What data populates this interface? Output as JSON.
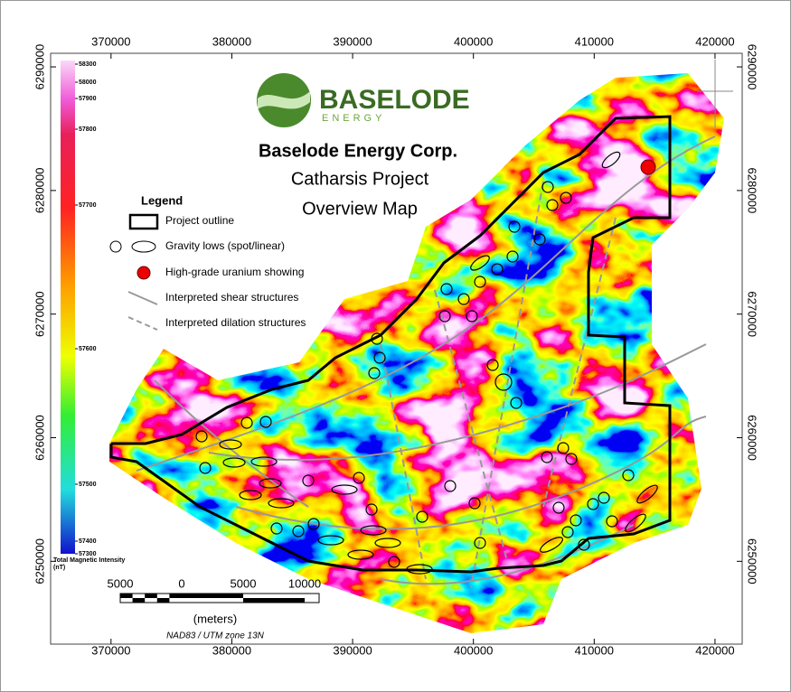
{
  "header": {
    "logo_name": "BASELODE",
    "logo_sub": "ENERGY",
    "title": "Baselode Energy Corp.",
    "subtitle_1": "Catharsis Project",
    "subtitle_2": "Overview Map"
  },
  "legend": {
    "title": "Legend",
    "items": [
      "Project outline",
      "Gravity lows (spot/linear)",
      "High-grade uranium showing",
      "Interpreted shear structures",
      "Interpreted dilation structures"
    ]
  },
  "color_bar": {
    "label": "Total Magnetic Intensity (nT)",
    "ticks": [
      58300,
      58000,
      57900,
      57800,
      57700,
      57600,
      57500,
      57400,
      57300
    ]
  },
  "scale_bar": {
    "labels": [
      5000,
      0,
      5000,
      10000
    ],
    "unit": "(meters)"
  },
  "projection": "NAD83 / UTM zone 13N",
  "axes": {
    "xlim": [
      365000,
      422250
    ],
    "xticks": [
      370000,
      380000,
      390000,
      400000,
      410000,
      420000
    ],
    "ylim": [
      6243300,
      6291100
    ],
    "yticks": [
      6250000,
      6260000,
      6270000,
      6280000,
      6290000
    ]
  }
}
